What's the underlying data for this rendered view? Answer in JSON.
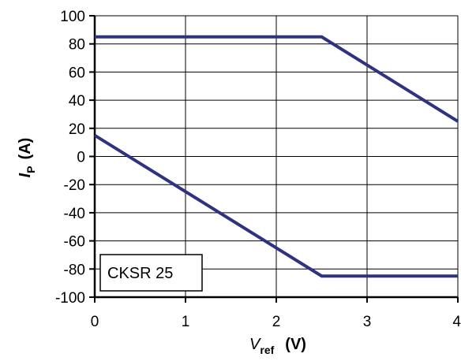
{
  "chart_data": {
    "type": "line",
    "title": "",
    "annotation": "CKSR 25",
    "xlabel": {
      "main": "V",
      "sub": "ref",
      "unit": "(V)"
    },
    "ylabel": {
      "main": "I",
      "sub": "P",
      "unit": "(A)"
    },
    "xlim": [
      0,
      4
    ],
    "ylim": [
      -100,
      100
    ],
    "x_ticks": [
      "0",
      "1",
      "2",
      "3",
      "4"
    ],
    "y_ticks": [
      "100",
      "80",
      "60",
      "40",
      "20",
      "0",
      "-20",
      "-40",
      "-60",
      "-80",
      "-100"
    ],
    "grid": true,
    "line_color": "#2e3381",
    "series": [
      {
        "x": [
          0,
          2.5,
          4
        ],
        "y": [
          85,
          85,
          25
        ]
      },
      {
        "x": [
          0,
          2.5,
          4
        ],
        "y": [
          15,
          -85,
          -85
        ]
      }
    ]
  }
}
